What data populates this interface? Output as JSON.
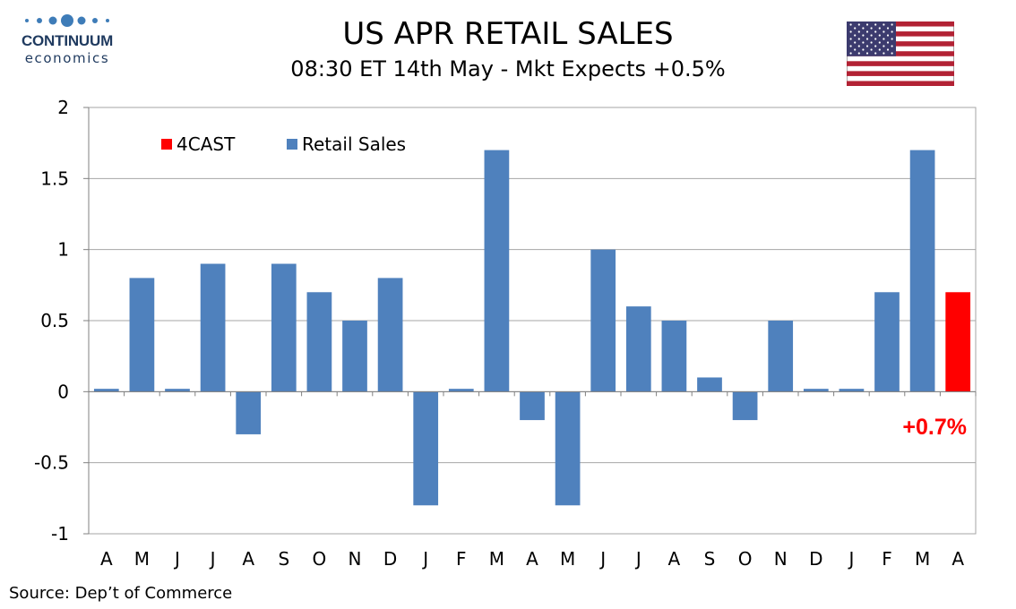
{
  "logo": {
    "name_line1": "CONTINUUM",
    "name_line2": "economics",
    "color": "#1f3a5f"
  },
  "header": {
    "title": "US APR RETAIL SALES",
    "subtitle": "08:30 ET 14th May - Mkt Expects +0.5%"
  },
  "flag": {
    "icon": "us-flag-icon"
  },
  "source": "Source: Dep’t of Commerce",
  "chart_data": {
    "type": "bar",
    "categories": [
      "A",
      "M",
      "J",
      "J",
      "A",
      "S",
      "O",
      "N",
      "D",
      "J",
      "F",
      "M",
      "A",
      "M",
      "J",
      "J",
      "A",
      "S",
      "O",
      "N",
      "D",
      "J",
      "F",
      "M",
      "A"
    ],
    "series": [
      {
        "name": "4CAST",
        "color": "#ff0000",
        "values": [
          null,
          null,
          null,
          null,
          null,
          null,
          null,
          null,
          null,
          null,
          null,
          null,
          null,
          null,
          null,
          null,
          null,
          null,
          null,
          null,
          null,
          null,
          null,
          null,
          0.7
        ]
      },
      {
        "name": "Retail Sales",
        "color": "#4f81bd",
        "values": [
          0.02,
          0.8,
          0.02,
          0.9,
          -0.3,
          0.9,
          0.7,
          0.5,
          0.8,
          -0.8,
          0.02,
          1.7,
          -0.2,
          -0.8,
          1.0,
          0.6,
          0.5,
          0.1,
          -0.2,
          0.5,
          0.02,
          0.02,
          0.7,
          1.7,
          null
        ]
      }
    ],
    "ylim": [
      -1,
      2
    ],
    "yticks": [
      "-1",
      "-0.5",
      "0",
      "0.5",
      "1",
      "1.5",
      "2"
    ],
    "grid": true,
    "legend_position": "top-left",
    "annotation": {
      "text": "+0.7%",
      "color": "#ff0000"
    }
  }
}
